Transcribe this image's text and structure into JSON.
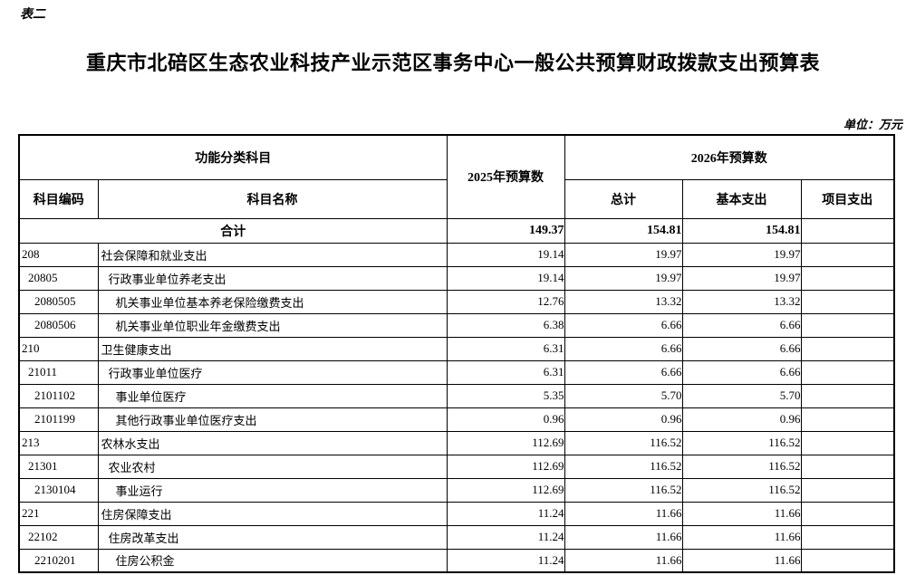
{
  "page": {
    "table_label": "表二",
    "title": "重庆市北碚区生态农业科技产业示范区事务中心一般公共预算财政拨款支出预算表",
    "unit_note": "单位：万元"
  },
  "table": {
    "header": {
      "func_group": "功能分类科目",
      "code": "科目编码",
      "name": "科目名称",
      "y2025": "2025年预算数",
      "y2026": "2026年预算数",
      "total": "总计",
      "basic": "基本支出",
      "project": "项目支出"
    },
    "total_row": {
      "name": "合计",
      "y2025": "149.37",
      "total": "154.81",
      "basic": "154.81",
      "project": ""
    },
    "rows": [
      {
        "code": "208",
        "name": "社会保障和就业支出",
        "level": 0,
        "y2025": "19.14",
        "total": "19.97",
        "basic": "19.97",
        "project": ""
      },
      {
        "code": "20805",
        "name": "行政事业单位养老支出",
        "level": 1,
        "y2025": "19.14",
        "total": "19.97",
        "basic": "19.97",
        "project": ""
      },
      {
        "code": "2080505",
        "name": "机关事业单位基本养老保险缴费支出",
        "level": 2,
        "y2025": "12.76",
        "total": "13.32",
        "basic": "13.32",
        "project": ""
      },
      {
        "code": "2080506",
        "name": "机关事业单位职业年金缴费支出",
        "level": 2,
        "y2025": "6.38",
        "total": "6.66",
        "basic": "6.66",
        "project": ""
      },
      {
        "code": "210",
        "name": "卫生健康支出",
        "level": 0,
        "y2025": "6.31",
        "total": "6.66",
        "basic": "6.66",
        "project": ""
      },
      {
        "code": "21011",
        "name": "行政事业单位医疗",
        "level": 1,
        "y2025": "6.31",
        "total": "6.66",
        "basic": "6.66",
        "project": ""
      },
      {
        "code": "2101102",
        "name": "事业单位医疗",
        "level": 2,
        "y2025": "5.35",
        "total": "5.70",
        "basic": "5.70",
        "project": ""
      },
      {
        "code": "2101199",
        "name": "其他行政事业单位医疗支出",
        "level": 2,
        "y2025": "0.96",
        "total": "0.96",
        "basic": "0.96",
        "project": ""
      },
      {
        "code": "213",
        "name": "农林水支出",
        "level": 0,
        "y2025": "112.69",
        "total": "116.52",
        "basic": "116.52",
        "project": ""
      },
      {
        "code": "21301",
        "name": "农业农村",
        "level": 1,
        "y2025": "112.69",
        "total": "116.52",
        "basic": "116.52",
        "project": ""
      },
      {
        "code": "2130104",
        "name": "事业运行",
        "level": 2,
        "y2025": "112.69",
        "total": "116.52",
        "basic": "116.52",
        "project": ""
      },
      {
        "code": "221",
        "name": "住房保障支出",
        "level": 0,
        "y2025": "11.24",
        "total": "11.66",
        "basic": "11.66",
        "project": ""
      },
      {
        "code": "22102",
        "name": "住房改革支出",
        "level": 1,
        "y2025": "11.24",
        "total": "11.66",
        "basic": "11.66",
        "project": ""
      },
      {
        "code": "2210201",
        "name": "住房公积金",
        "level": 2,
        "y2025": "11.24",
        "total": "11.66",
        "basic": "11.66",
        "project": ""
      }
    ]
  }
}
